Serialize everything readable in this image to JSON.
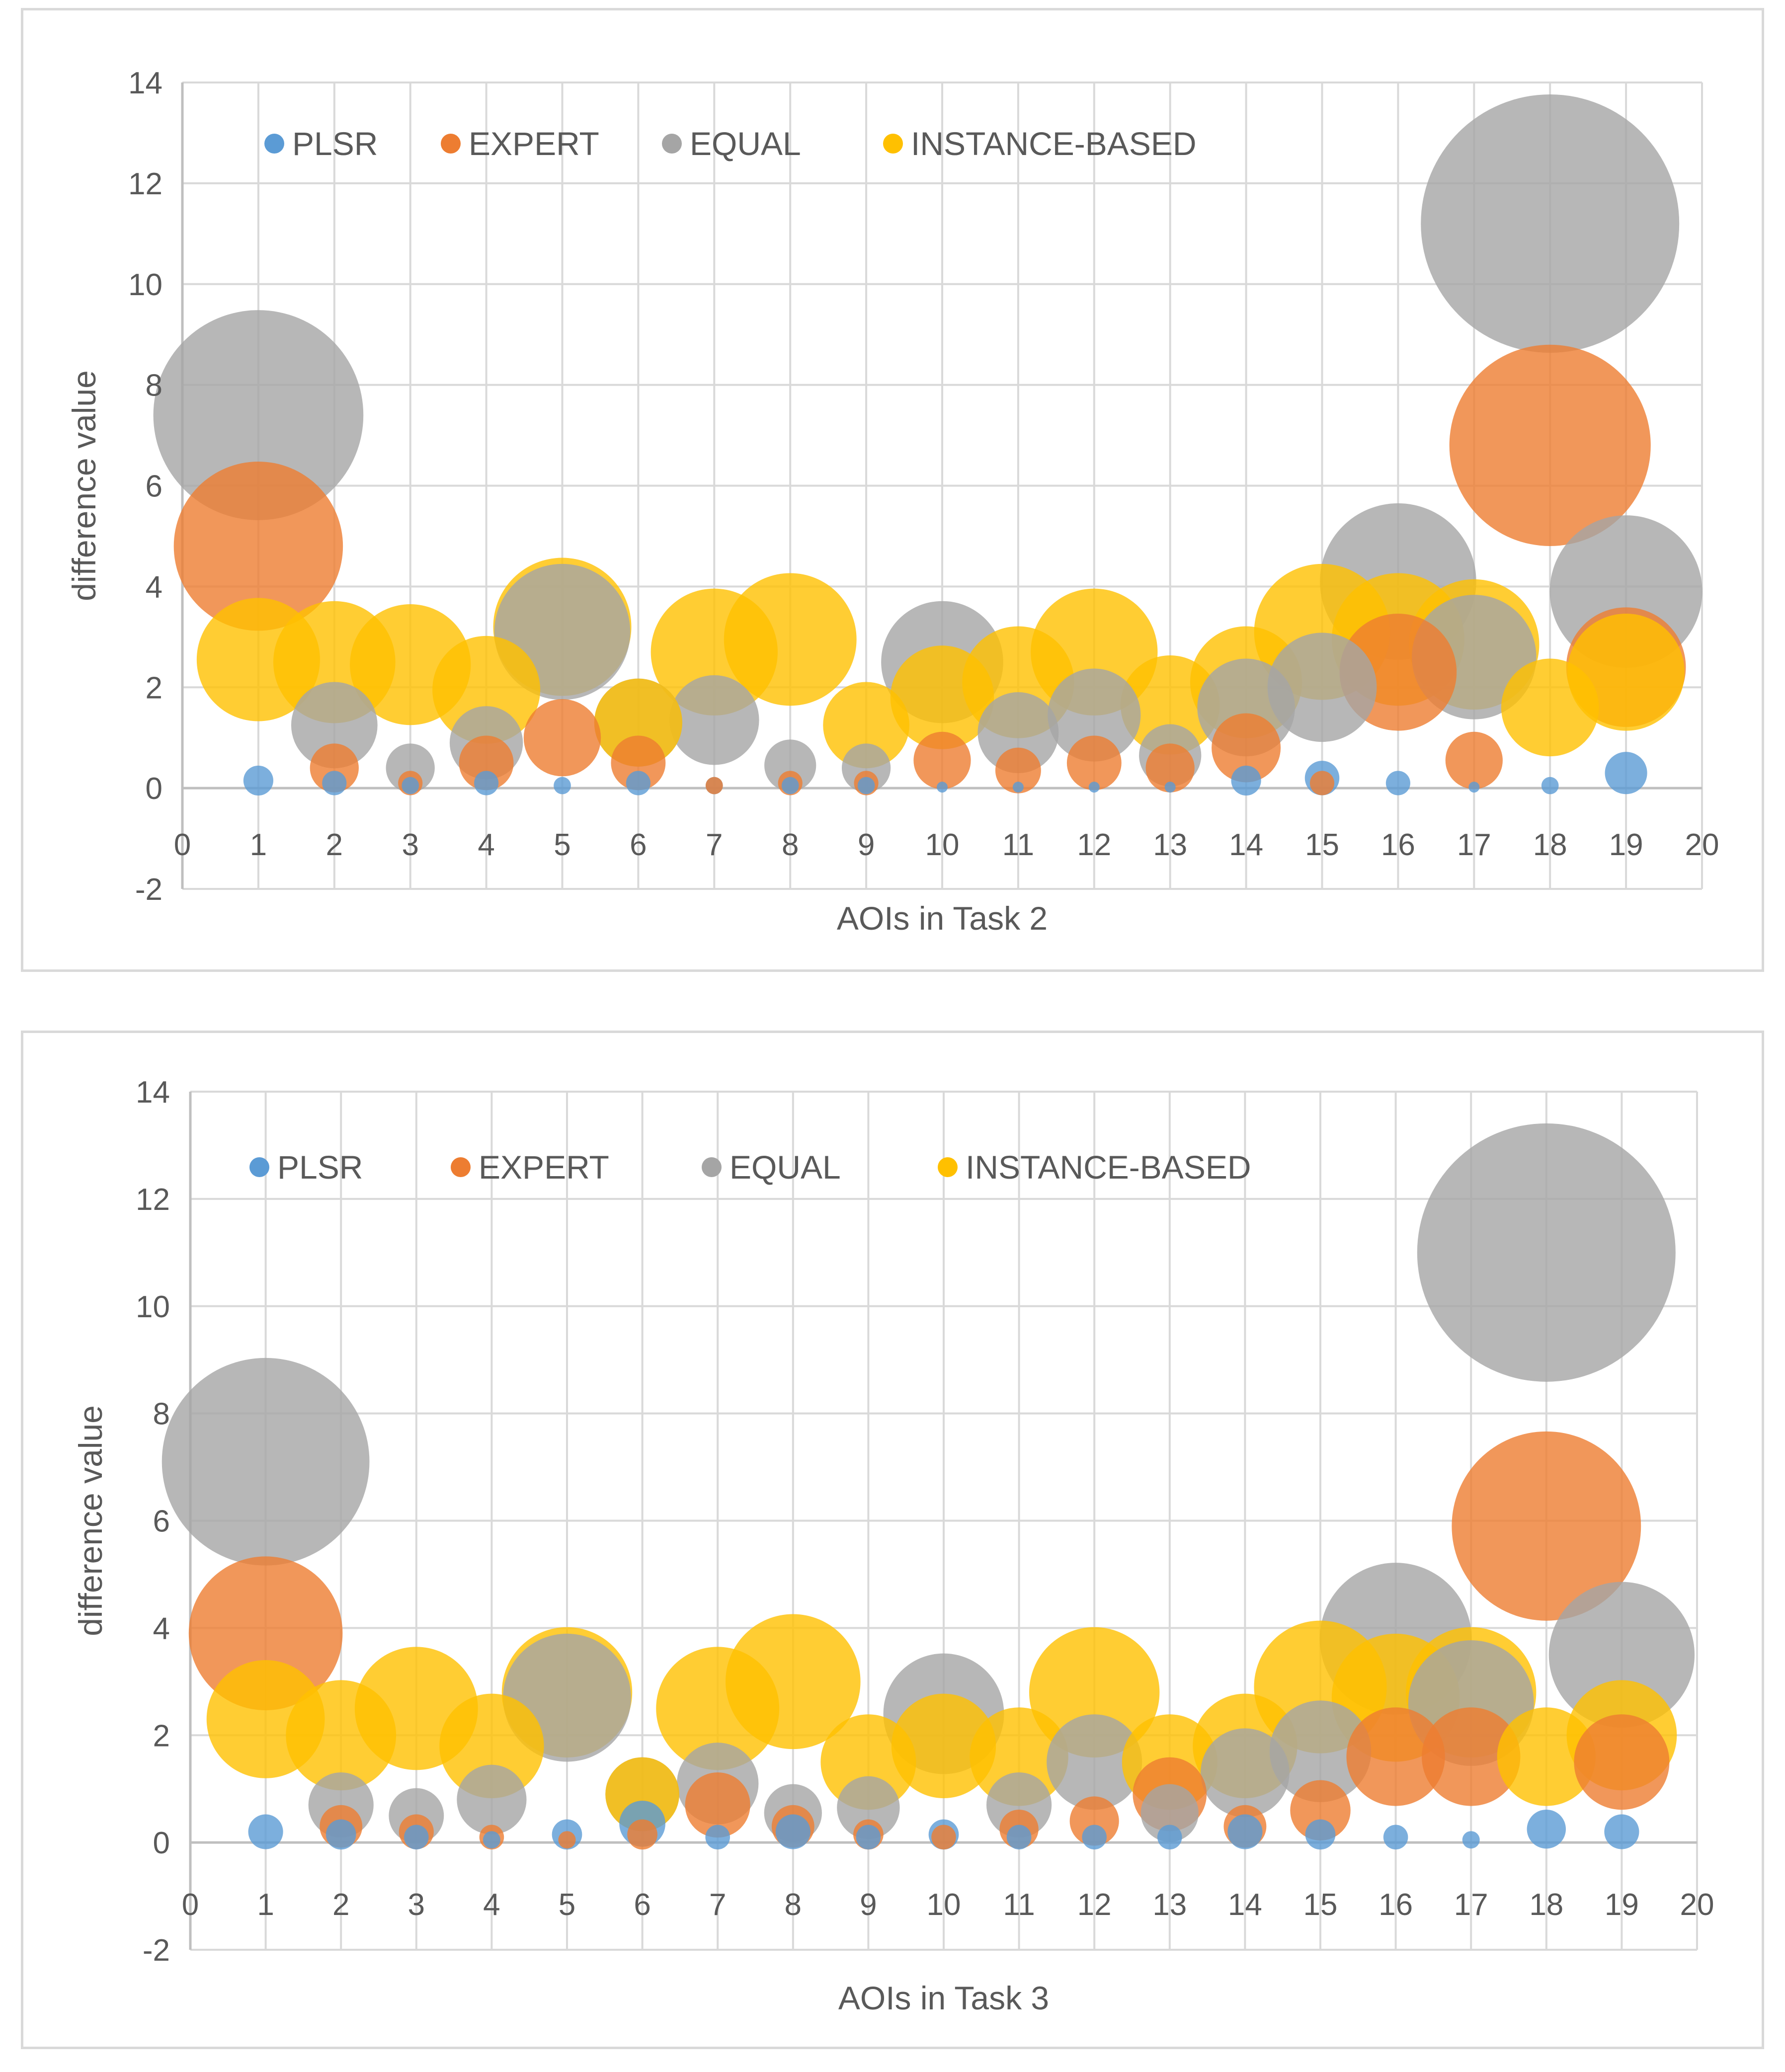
{
  "chart_data": [
    {
      "type": "bubble",
      "title": "",
      "xlabel": "AOIs in Task 2",
      "ylabel": "difference value",
      "xlim": [
        0,
        20
      ],
      "ylim": [
        -2,
        14
      ],
      "xticks": [
        "0",
        "1",
        "2",
        "3",
        "4",
        "5",
        "6",
        "7",
        "8",
        "9",
        "10",
        "11",
        "12",
        "13",
        "14",
        "15",
        "16",
        "17",
        "18",
        "19",
        "20"
      ],
      "yticks": [
        "-2",
        "0",
        "2",
        "4",
        "6",
        "8",
        "10",
        "12",
        "14"
      ],
      "grid": true,
      "legend": "top-left inside",
      "series": [
        {
          "name": "PLSR",
          "color": "#5B9BD5",
          "y": [
            0.15,
            0.1,
            0.05,
            0.1,
            0.05,
            0.1,
            0.05,
            0.05,
            0.05,
            0.02,
            0.02,
            0.02,
            0.02,
            0.15,
            0.2,
            0.1,
            0.02,
            0.05,
            0.3
          ]
        },
        {
          "name": "EXPERT",
          "color": "#ED7D31",
          "y": [
            4.8,
            0.4,
            0.1,
            0.5,
            1.0,
            0.5,
            0.05,
            0.1,
            0.1,
            0.55,
            0.35,
            0.5,
            0.4,
            0.8,
            0.1,
            2.3,
            0.55,
            6.8,
            2.4
          ]
        },
        {
          "name": "EQUAL",
          "color": "#A5A5A5",
          "y": [
            7.4,
            1.25,
            0.4,
            0.9,
            3.1,
            1.3,
            1.35,
            0.45,
            0.4,
            2.5,
            1.1,
            1.45,
            0.65,
            1.6,
            2.0,
            4.1,
            2.6,
            11.2,
            3.9
          ]
        },
        {
          "name": "INSTANCE-BASED",
          "color": "#FFC000",
          "y": [
            2.55,
            2.5,
            2.45,
            1.95,
            3.2,
            1.3,
            2.7,
            2.95,
            1.25,
            1.8,
            2.1,
            2.7,
            1.65,
            2.1,
            3.1,
            2.95,
            2.85,
            1.6,
            2.3
          ]
        }
      ]
    },
    {
      "type": "bubble",
      "title": "",
      "xlabel": "AOIs in Task 3",
      "ylabel": "difference value",
      "xlim": [
        0,
        20
      ],
      "ylim": [
        -2,
        14
      ],
      "xticks": [
        "0",
        "1",
        "2",
        "3",
        "4",
        "5",
        "6",
        "7",
        "8",
        "9",
        "10",
        "11",
        "12",
        "13",
        "14",
        "15",
        "16",
        "17",
        "18",
        "19",
        "20"
      ],
      "yticks": [
        "-2",
        "0",
        "2",
        "4",
        "6",
        "8",
        "10",
        "12",
        "14"
      ],
      "grid": true,
      "legend": "top-left inside",
      "series": [
        {
          "name": "PLSR",
          "color": "#5B9BD5",
          "y": [
            0.2,
            0.15,
            0.1,
            0.05,
            0.15,
            0.35,
            0.1,
            0.2,
            0.1,
            0.15,
            0.1,
            0.1,
            0.1,
            0.2,
            0.15,
            0.1,
            0.05,
            0.25,
            0.2
          ]
        },
        {
          "name": "EXPERT",
          "color": "#ED7D31",
          "y": [
            3.9,
            0.3,
            0.2,
            0.1,
            0.05,
            0.15,
            0.7,
            0.3,
            0.15,
            0.1,
            0.25,
            0.4,
            0.9,
            0.3,
            0.6,
            1.6,
            1.6,
            5.9,
            1.5
          ]
        },
        {
          "name": "EQUAL",
          "color": "#A5A5A5",
          "y": [
            7.1,
            0.7,
            0.5,
            0.8,
            2.7,
            0.9,
            1.1,
            0.55,
            0.65,
            2.4,
            0.7,
            1.5,
            0.55,
            1.3,
            1.7,
            3.8,
            2.6,
            11.0,
            3.5
          ]
        },
        {
          "name": "INSTANCE-BASED",
          "color": "#FFC000",
          "y": [
            2.3,
            2.0,
            2.5,
            1.8,
            2.8,
            0.9,
            2.5,
            3.0,
            1.5,
            1.8,
            1.6,
            2.8,
            1.5,
            1.8,
            2.9,
            2.7,
            2.8,
            1.6,
            2.0
          ]
        }
      ]
    }
  ]
}
